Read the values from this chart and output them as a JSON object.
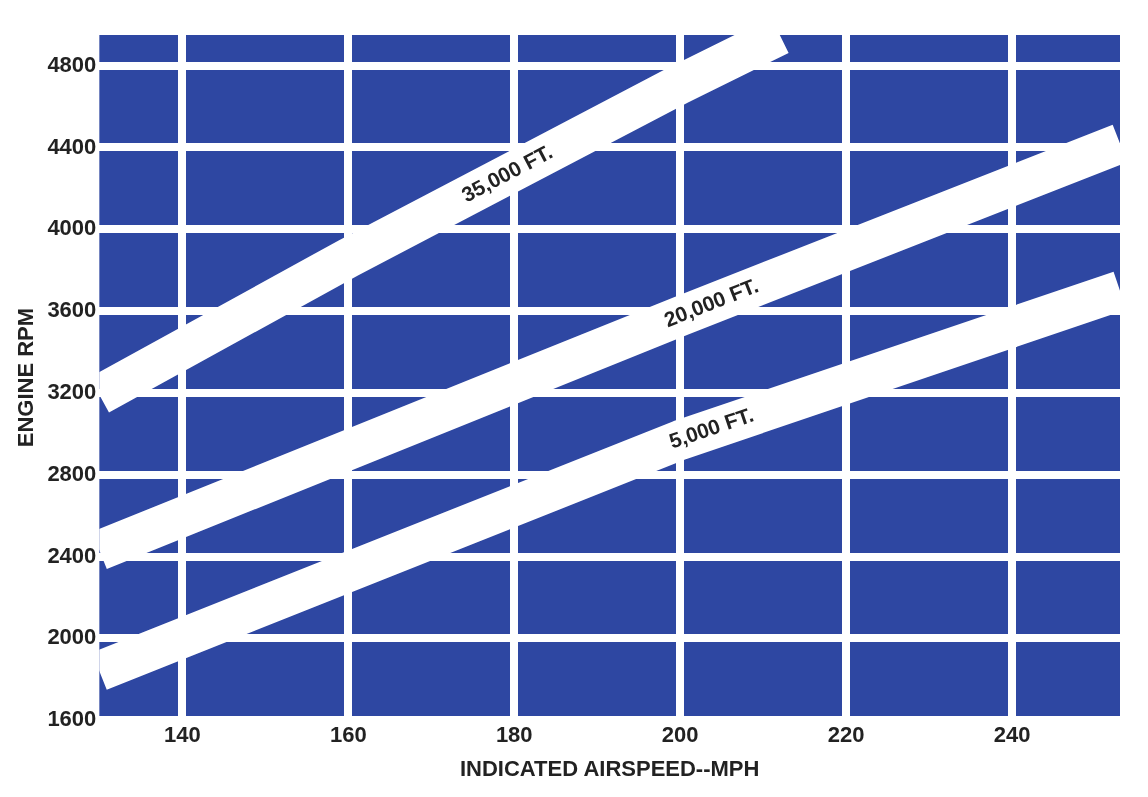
{
  "chart_data": {
    "type": "line",
    "xlabel": "INDICATED AIRSPEED--MPH",
    "ylabel": "ENGINE RPM",
    "xlim": [
      130,
      253
    ],
    "xticks": [
      140,
      160,
      180,
      200,
      220,
      240
    ],
    "ylim": [
      1600,
      4950
    ],
    "yticks": [
      1600,
      2000,
      2400,
      2800,
      3200,
      3600,
      4000,
      4400,
      4800
    ],
    "grid": true,
    "marker": "none",
    "line_style": "solid",
    "series": [
      {
        "name": "35,000 FT.",
        "color": "#ffffff",
        "x": [
          130,
          160,
          200,
          212
        ],
        "values": [
          3190,
          3860,
          4710,
          4950
        ]
      },
      {
        "name": "20,000 FT.",
        "color": "#ffffff",
        "x": [
          130,
          200,
          253
        ],
        "values": [
          2430,
          3575,
          4420
        ]
      },
      {
        "name": "5,000 FT.",
        "color": "#ffffff",
        "x": [
          130,
          200,
          253
        ],
        "values": [
          1840,
          2970,
          3700
        ]
      }
    ]
  }
}
